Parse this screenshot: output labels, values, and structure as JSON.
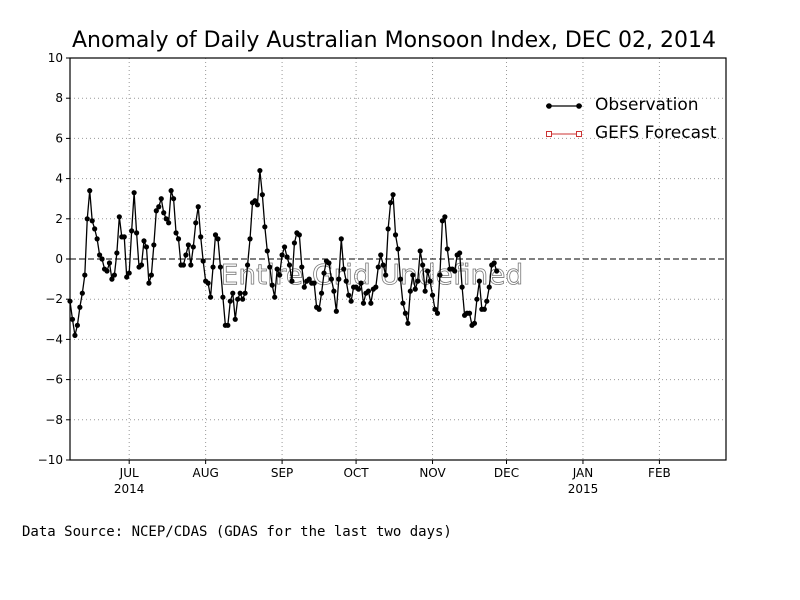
{
  "chart_data": {
    "type": "line",
    "title": "Anomaly of Daily Australian Monsoon Index, DEC 02, 2014",
    "xlabel": "",
    "ylabel": "",
    "ylim": [
      -10,
      10
    ],
    "yticks": [
      10,
      8,
      6,
      4,
      2,
      0,
      -2,
      -4,
      -6,
      -8,
      -10
    ],
    "ytick_labels": [
      "10",
      "8",
      "6",
      "4",
      "2",
      "0",
      "−2",
      "−4",
      "−6",
      "−8",
      "−10"
    ],
    "x_domain": [
      "2014-06-07",
      "2015-02-28"
    ],
    "x_ticks": [
      {
        "date": "2014-07-01",
        "label": "JUL",
        "sublabel": "2014"
      },
      {
        "date": "2014-08-01",
        "label": "AUG",
        "sublabel": ""
      },
      {
        "date": "2014-09-01",
        "label": "SEP",
        "sublabel": ""
      },
      {
        "date": "2014-10-01",
        "label": "OCT",
        "sublabel": ""
      },
      {
        "date": "2014-11-01",
        "label": "NOV",
        "sublabel": ""
      },
      {
        "date": "2014-12-01",
        "label": "DEC",
        "sublabel": ""
      },
      {
        "date": "2015-01-01",
        "label": "JAN",
        "sublabel": "2015"
      },
      {
        "date": "2015-02-01",
        "label": "FEB",
        "sublabel": ""
      }
    ],
    "grid": true,
    "zero_line": "dashed",
    "legend_position": "top-right",
    "series": [
      {
        "name": "Observation",
        "color": "#000000",
        "marker": "filled-circle",
        "x_start": "2014-06-07",
        "x_step_days": 1,
        "values": [
          -2.1,
          -3.0,
          -3.8,
          -3.3,
          -2.4,
          -1.7,
          -0.8,
          2.0,
          3.4,
          1.9,
          1.5,
          1.0,
          0.2,
          0.0,
          -0.5,
          -0.6,
          -0.2,
          -1.0,
          -0.8,
          0.3,
          2.1,
          1.1,
          1.1,
          -0.9,
          -0.7,
          1.4,
          3.3,
          1.3,
          -0.4,
          -0.3,
          0.9,
          0.6,
          -1.2,
          -0.8,
          0.7,
          2.4,
          2.6,
          3.0,
          2.3,
          2.0,
          1.8,
          3.4,
          3.0,
          1.3,
          1.0,
          -0.3,
          -0.3,
          0.2,
          0.7,
          -0.3,
          0.6,
          1.8,
          2.6,
          1.1,
          -0.1,
          -1.1,
          -1.2,
          -1.9,
          -0.4,
          1.2,
          1.0,
          -0.4,
          -1.9,
          -3.3,
          -3.3,
          -2.1,
          -1.7,
          -3.0,
          -2.0,
          -1.7,
          -2.0,
          -1.7,
          -0.3,
          1.0,
          2.8,
          2.9,
          2.7,
          4.4,
          3.2,
          1.6,
          0.4,
          -0.4,
          -1.3,
          -1.9,
          -0.5,
          -0.8,
          0.2,
          0.6,
          0.1,
          -0.3,
          -1.1,
          0.8,
          1.3,
          1.2,
          -0.4,
          -1.4,
          -1.1,
          -1.0,
          -1.2,
          -1.2,
          -2.4,
          -2.5,
          -1.7,
          -0.7,
          -0.1,
          -0.2,
          -1.0,
          -1.6,
          -2.6,
          -1.0,
          1.0,
          -0.5,
          -1.1,
          -1.8,
          -2.1,
          -1.4,
          -1.4,
          -1.5,
          -1.2,
          -2.2,
          -1.7,
          -1.6,
          -2.2,
          -1.5,
          -1.4,
          -0.4,
          0.2,
          -0.3,
          -0.8,
          1.5,
          2.8,
          3.2,
          1.2,
          0.5,
          -1.0,
          -2.2,
          -2.7,
          -3.2,
          -1.6,
          -0.8,
          -1.5,
          -1.1,
          0.4,
          -0.3,
          -1.6,
          -0.6,
          -1.1,
          -1.8,
          -2.5,
          -2.7,
          -0.8,
          1.9,
          2.1,
          0.5,
          -0.5,
          -0.5,
          -0.6,
          0.2,
          0.3,
          -1.4,
          -2.8,
          -2.7,
          -2.7,
          -3.3,
          -3.2,
          -2.0,
          -1.1,
          -2.5,
          -2.5,
          -2.1,
          -1.4,
          -0.3,
          -0.2,
          -0.6
        ]
      },
      {
        "name": "GEFS Forecast",
        "color": "#cc3333",
        "marker": "open-square",
        "values": []
      }
    ],
    "overlay_text": "Entire Grid Undefined",
    "footnote": "Data Source:  NCEP/CDAS (GDAS for the last two days)"
  }
}
